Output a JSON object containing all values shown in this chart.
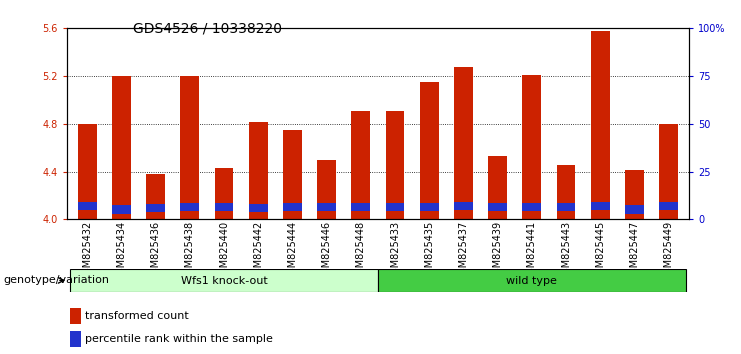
{
  "title": "GDS4526 / 10338220",
  "samples": [
    "GSM825432",
    "GSM825434",
    "GSM825436",
    "GSM825438",
    "GSM825440",
    "GSM825442",
    "GSM825444",
    "GSM825446",
    "GSM825448",
    "GSM825433",
    "GSM825435",
    "GSM825437",
    "GSM825439",
    "GSM825441",
    "GSM825443",
    "GSM825445",
    "GSM825447",
    "GSM825449"
  ],
  "red_values": [
    4.8,
    5.2,
    4.38,
    5.2,
    4.43,
    4.82,
    4.75,
    4.5,
    4.91,
    4.91,
    5.15,
    5.28,
    4.53,
    5.21,
    4.46,
    5.58,
    4.41,
    4.8
  ],
  "blue_values": [
    4.08,
    4.05,
    4.06,
    4.07,
    4.07,
    4.06,
    4.07,
    4.07,
    4.07,
    4.07,
    4.07,
    4.08,
    4.07,
    4.07,
    4.07,
    4.08,
    4.05,
    4.08
  ],
  "blue_heights": [
    0.07,
    0.07,
    0.07,
    0.07,
    0.07,
    0.07,
    0.07,
    0.07,
    0.07,
    0.07,
    0.07,
    0.07,
    0.07,
    0.07,
    0.07,
    0.07,
    0.07,
    0.07
  ],
  "group1_label": "Wfs1 knock-out",
  "group2_label": "wild type",
  "group1_count": 9,
  "group2_count": 9,
  "ylim": [
    4.0,
    5.6
  ],
  "yticks_left": [
    4.0,
    4.4,
    4.8,
    5.2,
    5.6
  ],
  "yticks_right_vals": [
    "0",
    "25",
    "50",
    "75",
    "100%"
  ],
  "yticks_right_pos": [
    4.0,
    4.4,
    4.8,
    5.2,
    5.6
  ],
  "red_color": "#cc2200",
  "blue_color": "#2233cc",
  "bar_width": 0.55,
  "group1_bg": "#ccffcc",
  "group2_bg": "#44cc44",
  "title_fontsize": 10,
  "tick_fontsize": 7,
  "label_fontsize": 8,
  "legend_fontsize": 8,
  "genotype_label": "genotype/variation",
  "legend1": "transformed count",
  "legend2": "percentile rank within the sample"
}
